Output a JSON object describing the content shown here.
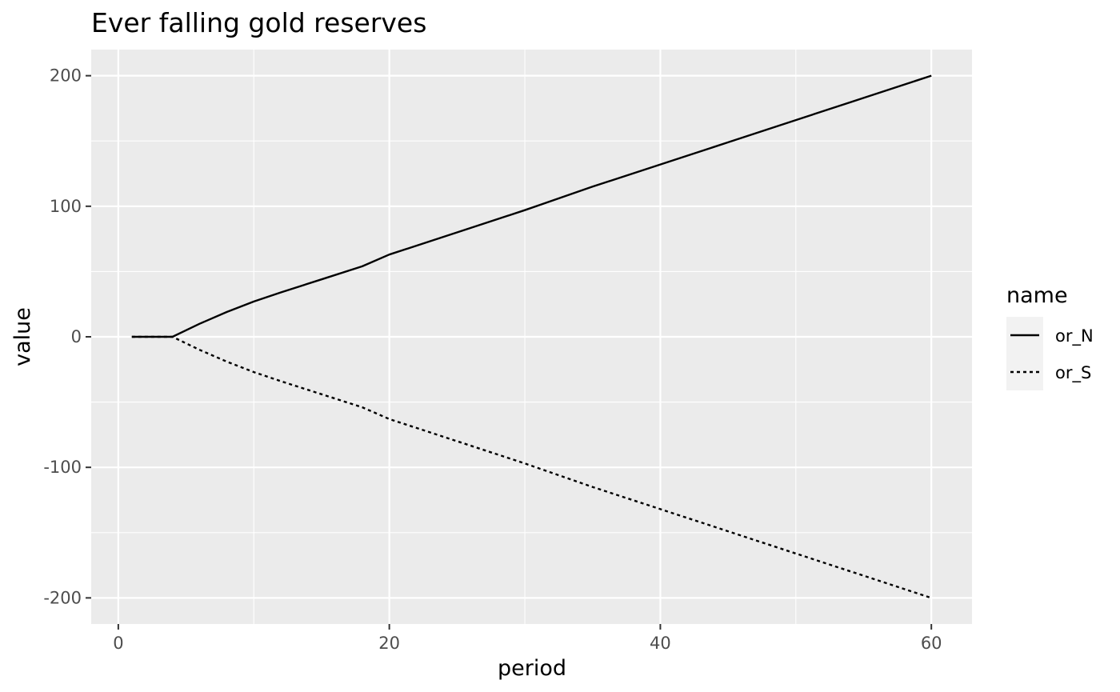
{
  "chart_data": {
    "type": "line",
    "title": "Ever falling gold reserves",
    "xlabel": "period",
    "ylabel": "value",
    "xlim": [
      -2,
      63
    ],
    "ylim": [
      -220,
      220
    ],
    "x_ticks": [
      0,
      20,
      40,
      60
    ],
    "x_tick_labels": [
      "0",
      "20",
      "40",
      "60"
    ],
    "y_ticks": [
      -200,
      -100,
      0,
      100,
      200
    ],
    "y_tick_labels": [
      "-200",
      "-100",
      "0",
      "100",
      "200"
    ],
    "grid": true,
    "legend": {
      "title": "name",
      "position": "right"
    },
    "x": [
      1,
      2,
      3,
      4,
      5,
      6,
      8,
      10,
      12,
      15,
      18,
      20,
      25,
      30,
      35,
      40,
      45,
      50,
      55,
      60
    ],
    "series": [
      {
        "name": "or_N",
        "linetype": "solid",
        "color": "#000000",
        "values": [
          0,
          0,
          0,
          0,
          5,
          10,
          19,
          27,
          34,
          44,
          54,
          63,
          80,
          97,
          115,
          132,
          149,
          166,
          183,
          200
        ]
      },
      {
        "name": "or_S",
        "linetype": "dotted",
        "color": "#000000",
        "values": [
          0,
          0,
          0,
          0,
          -5,
          -10,
          -19,
          -27,
          -34,
          -44,
          -54,
          -63,
          -80,
          -97,
          -115,
          -132,
          -149,
          -166,
          -183,
          -200
        ]
      }
    ],
    "colors": {
      "panel": "#ebebeb",
      "grid": "#ffffff",
      "legend_key_bg": "#f2f2f2",
      "tick": "#4d4d4d"
    }
  }
}
